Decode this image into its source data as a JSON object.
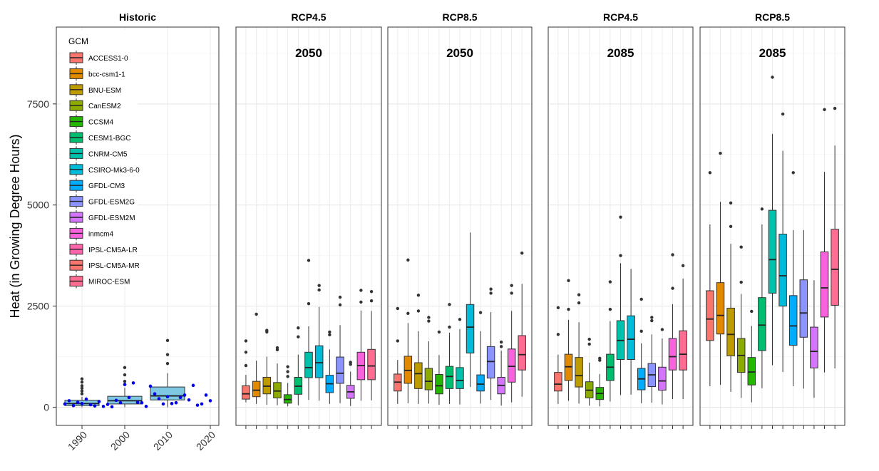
{
  "chart_data": {
    "type": "box",
    "ylabel": "Heat (in Growing Degree Hours)",
    "yticks": [
      0,
      2500,
      5000,
      7500
    ],
    "ylim": [
      -450,
      9400
    ],
    "legend": {
      "title": "GCM",
      "placement": "inside top-left of Historic panel",
      "entries": [
        {
          "name": "ACCESS1-0",
          "color": "#F8766D"
        },
        {
          "name": "bcc-csm1-1",
          "color": "#E18A00"
        },
        {
          "name": "BNU-ESM",
          "color": "#BE9C00"
        },
        {
          "name": "CanESM2",
          "color": "#8CAB00"
        },
        {
          "name": "CCSM4",
          "color": "#24B700"
        },
        {
          "name": "CESM1-BGC",
          "color": "#00BE70"
        },
        {
          "name": "CNRM-CM5",
          "color": "#00C1AB"
        },
        {
          "name": "CSIRO-Mk3-6-0",
          "color": "#00BBDA"
        },
        {
          "name": "GFDL-CM3",
          "color": "#00ACFC"
        },
        {
          "name": "GFDL-ESM2G",
          "color": "#8B93FF"
        },
        {
          "name": "GFDL-ESM2M",
          "color": "#D575FE"
        },
        {
          "name": "inmcm4",
          "color": "#F962DD"
        },
        {
          "name": "IPSL-CM5A-LR",
          "color": "#FF65AC"
        },
        {
          "name": "IPSL-CM5A-MR",
          "color": "#F8766D"
        },
        {
          "name": "MIROC-ESM",
          "color": "#FF6C91"
        }
      ]
    },
    "historic": {
      "title": "Historic",
      "x_ticks": [
        "1990",
        "2000",
        "2010",
        "2020"
      ],
      "x_tick_values": [
        1990,
        2000,
        2010,
        2020
      ],
      "xlim": [
        1984,
        2022
      ],
      "box_fill": "#7EC8E3",
      "boxes": [
        {
          "x": 1990,
          "q1": 40,
          "median": 90,
          "q3": 170,
          "lo": 0,
          "hi": 260,
          "outliers": [
            330,
            400,
            470,
            530,
            620,
            700
          ]
        },
        {
          "x": 2000,
          "q1": 80,
          "median": 160,
          "q3": 270,
          "lo": 0,
          "hi": 480,
          "outliers": [
            560,
            640,
            800,
            980
          ]
        },
        {
          "x": 2010,
          "q1": 180,
          "median": 280,
          "q3": 500,
          "lo": 0,
          "hi": 840,
          "outliers": [
            1080,
            1300,
            1650
          ]
        }
      ],
      "points_color": "#0000EE",
      "points": [
        {
          "x": 1986,
          "y": 80
        },
        {
          "x": 1987,
          "y": 160
        },
        {
          "x": 1988,
          "y": 40
        },
        {
          "x": 1989,
          "y": 120
        },
        {
          "x": 1990,
          "y": 90
        },
        {
          "x": 1991,
          "y": 200
        },
        {
          "x": 1992,
          "y": 60
        },
        {
          "x": 1993,
          "y": 30
        },
        {
          "x": 1994,
          "y": 140
        },
        {
          "x": 1995,
          "y": 20
        },
        {
          "x": 1996,
          "y": 70
        },
        {
          "x": 1997,
          "y": 10
        },
        {
          "x": 1998,
          "y": 170
        },
        {
          "x": 1999,
          "y": 110
        },
        {
          "x": 2000,
          "y": 560
        },
        {
          "x": 2001,
          "y": 240
        },
        {
          "x": 2002,
          "y": 600
        },
        {
          "x": 2003,
          "y": 120
        },
        {
          "x": 2004,
          "y": 110
        },
        {
          "x": 2005,
          "y": 20
        },
        {
          "x": 2006,
          "y": 520
        },
        {
          "x": 2007,
          "y": 330
        },
        {
          "x": 2008,
          "y": 210
        },
        {
          "x": 2009,
          "y": 80
        },
        {
          "x": 2010,
          "y": 260
        },
        {
          "x": 2011,
          "y": 90
        },
        {
          "x": 2012,
          "y": 110
        },
        {
          "x": 2013,
          "y": 240
        },
        {
          "x": 2014,
          "y": 300
        },
        {
          "x": 2015,
          "y": 180
        },
        {
          "x": 2016,
          "y": 540
        },
        {
          "x": 2017,
          "y": 50
        },
        {
          "x": 2018,
          "y": 80
        },
        {
          "x": 2019,
          "y": 300
        },
        {
          "x": 2020,
          "y": 160
        }
      ]
    },
    "panels": [
      {
        "title": "RCP4.5",
        "period": "2050",
        "boxes": [
          {
            "gcm": "ACCESS1-0",
            "q1": 200,
            "median": 330,
            "q3": 530,
            "lo": 120,
            "hi": 800,
            "outliers": [
              1030,
              1360,
              1640
            ]
          },
          {
            "gcm": "bcc-csm1-1",
            "q1": 260,
            "median": 420,
            "q3": 640,
            "lo": 80,
            "hi": 1150,
            "outliers": [
              2300
            ]
          },
          {
            "gcm": "BNU-ESM",
            "q1": 330,
            "median": 520,
            "q3": 740,
            "lo": 60,
            "hi": 1250,
            "outliers": [
              1860,
              1900
            ]
          },
          {
            "gcm": "CanESM2",
            "q1": 230,
            "median": 400,
            "q3": 610,
            "lo": 50,
            "hi": 1080,
            "outliers": [
              1420,
              1470
            ]
          },
          {
            "gcm": "CCSM4",
            "q1": 100,
            "median": 190,
            "q3": 310,
            "lo": 20,
            "hi": 600,
            "outliers": [
              760,
              880,
              1000
            ]
          },
          {
            "gcm": "CESM1-BGC",
            "q1": 320,
            "median": 520,
            "q3": 740,
            "lo": 50,
            "hi": 1300,
            "outliers": [
              1740,
              1960
            ]
          },
          {
            "gcm": "CNRM-CM5",
            "q1": 730,
            "median": 980,
            "q3": 1360,
            "lo": 180,
            "hi": 2000,
            "outliers": [
              2560,
              3630
            ]
          },
          {
            "gcm": "CSIRO-Mk3-6-0",
            "q1": 730,
            "median": 1100,
            "q3": 1520,
            "lo": 160,
            "hi": 2480,
            "outliers": [
              2900,
              3010
            ]
          },
          {
            "gcm": "GFDL-CM3",
            "q1": 360,
            "median": 580,
            "q3": 790,
            "lo": 80,
            "hi": 1430,
            "outliers": [
              1790,
              1860
            ]
          },
          {
            "gcm": "GFDL-ESM2G",
            "q1": 590,
            "median": 840,
            "q3": 1240,
            "lo": 100,
            "hi": 2030,
            "outliers": [
              2530,
              2720
            ]
          },
          {
            "gcm": "GFDL-ESM2M",
            "q1": 220,
            "median": 380,
            "q3": 540,
            "lo": 30,
            "hi": 880,
            "outliers": [
              1060,
              1110
            ]
          },
          {
            "gcm": "inmcm4",
            "q1": 680,
            "median": 1030,
            "q3": 1360,
            "lo": 160,
            "hi": 2390,
            "outliers": [
              2600,
              2890
            ]
          },
          {
            "gcm": "MIROC-ESM",
            "q1": 680,
            "median": 1020,
            "q3": 1430,
            "lo": 170,
            "hi": 2380,
            "outliers": [
              2630,
              2860
            ]
          }
        ]
      },
      {
        "title": "RCP8.5",
        "period": "2050",
        "boxes": [
          {
            "gcm": "ACCESS1-0",
            "q1": 400,
            "median": 620,
            "q3": 820,
            "lo": 80,
            "hi": 1170,
            "outliers": [
              1640,
              2440
            ]
          },
          {
            "gcm": "bcc-csm1-1",
            "q1": 590,
            "median": 910,
            "q3": 1260,
            "lo": 100,
            "hi": 2080,
            "outliers": [
              2320,
              3640
            ]
          },
          {
            "gcm": "BNU-ESM",
            "q1": 460,
            "median": 830,
            "q3": 1100,
            "lo": 80,
            "hi": 1880,
            "outliers": [
              2380,
              2770
            ]
          },
          {
            "gcm": "CanESM2",
            "q1": 430,
            "median": 640,
            "q3": 960,
            "lo": 90,
            "hi": 1630,
            "outliers": [
              2130,
              2220
            ]
          },
          {
            "gcm": "CCSM4",
            "q1": 330,
            "median": 530,
            "q3": 810,
            "lo": 60,
            "hi": 1290,
            "outliers": [
              1860
            ]
          },
          {
            "gcm": "CESM1-BGC",
            "q1": 460,
            "median": 760,
            "q3": 1010,
            "lo": 80,
            "hi": 1840,
            "outliers": [
              1980,
              2540
            ]
          },
          {
            "gcm": "CNRM-CM5",
            "q1": 460,
            "median": 660,
            "q3": 980,
            "lo": 70,
            "hi": 1930,
            "outliers": [
              2170
            ]
          },
          {
            "gcm": "CSIRO-Mk3-6-0",
            "q1": 1340,
            "median": 1980,
            "q3": 2540,
            "lo": 500,
            "hi": 4320,
            "outliers": []
          },
          {
            "gcm": "GFDL-CM3",
            "q1": 400,
            "median": 570,
            "q3": 800,
            "lo": 90,
            "hi": 1880,
            "outliers": [
              2340
            ]
          },
          {
            "gcm": "GFDL-ESM2G",
            "q1": 720,
            "median": 1130,
            "q3": 1500,
            "lo": 180,
            "hi": 2350,
            "outliers": [
              2820,
              2920
            ]
          },
          {
            "gcm": "GFDL-ESM2M",
            "q1": 330,
            "median": 540,
            "q3": 740,
            "lo": 40,
            "hi": 1400,
            "outliers": [
              1500,
              1610
            ]
          },
          {
            "gcm": "inmcm4",
            "q1": 620,
            "median": 1010,
            "q3": 1440,
            "lo": 120,
            "hi": 2380,
            "outliers": [
              2820,
              3010
            ]
          },
          {
            "gcm": "MIROC-ESM",
            "q1": 920,
            "median": 1300,
            "q3": 1770,
            "lo": 260,
            "hi": 3050,
            "outliers": [
              3810
            ]
          }
        ]
      },
      {
        "title": "RCP4.5",
        "period": "2085",
        "boxes": [
          {
            "gcm": "ACCESS1-0",
            "q1": 400,
            "median": 570,
            "q3": 860,
            "lo": 80,
            "hi": 1300,
            "outliers": [
              1800,
              2460
            ]
          },
          {
            "gcm": "bcc-csm1-1",
            "q1": 660,
            "median": 1000,
            "q3": 1310,
            "lo": 160,
            "hi": 2160,
            "outliers": [
              2420,
              3130
            ]
          },
          {
            "gcm": "BNU-ESM",
            "q1": 500,
            "median": 780,
            "q3": 1230,
            "lo": 90,
            "hi": 2100,
            "outliers": [
              2580,
              2780
            ]
          },
          {
            "gcm": "CanESM2",
            "q1": 230,
            "median": 420,
            "q3": 630,
            "lo": 40,
            "hi": 1100,
            "outliers": [
              1560,
              1680
            ]
          },
          {
            "gcm": "CCSM4",
            "q1": 190,
            "median": 340,
            "q3": 490,
            "lo": 20,
            "hi": 820,
            "outliers": [
              1160,
              1210
            ]
          },
          {
            "gcm": "CESM1-BGC",
            "q1": 660,
            "median": 990,
            "q3": 1310,
            "lo": 140,
            "hi": 2130,
            "outliers": [
              2420,
              3100
            ]
          },
          {
            "gcm": "CNRM-CM5",
            "q1": 1180,
            "median": 1650,
            "q3": 2140,
            "lo": 300,
            "hi": 3560,
            "outliers": [
              3750,
              4700
            ]
          },
          {
            "gcm": "CSIRO-Mk3-6-0",
            "q1": 1180,
            "median": 1680,
            "q3": 2260,
            "lo": 310,
            "hi": 3420,
            "outliers": []
          },
          {
            "gcm": "GFDL-CM3",
            "q1": 430,
            "median": 700,
            "q3": 960,
            "lo": 100,
            "hi": 1580,
            "outliers": [
              1880,
              2670
            ]
          },
          {
            "gcm": "GFDL-ESM2G",
            "q1": 510,
            "median": 800,
            "q3": 1080,
            "lo": 110,
            "hi": 1800,
            "outliers": [
              2140,
              2220
            ]
          },
          {
            "gcm": "GFDL-ESM2M",
            "q1": 420,
            "median": 650,
            "q3": 990,
            "lo": 70,
            "hi": 1700,
            "outliers": [
              1920
            ]
          },
          {
            "gcm": "inmcm4",
            "q1": 920,
            "median": 1250,
            "q3": 1700,
            "lo": 200,
            "hi": 2550,
            "outliers": [
              2940,
              3770
            ]
          },
          {
            "gcm": "MIROC-ESM",
            "q1": 920,
            "median": 1310,
            "q3": 1890,
            "lo": 200,
            "hi": 3180,
            "outliers": [
              3500
            ]
          }
        ]
      },
      {
        "title": "RCP8.5",
        "period": "2085",
        "boxes": [
          {
            "gcm": "ACCESS1-0",
            "q1": 1650,
            "median": 2180,
            "q3": 2880,
            "lo": 520,
            "hi": 4520,
            "outliers": [
              5800
            ]
          },
          {
            "gcm": "bcc-csm1-1",
            "q1": 1810,
            "median": 2270,
            "q3": 3080,
            "lo": 550,
            "hi": 5080,
            "outliers": [
              6280
            ]
          },
          {
            "gcm": "BNU-ESM",
            "q1": 1270,
            "median": 1800,
            "q3": 2450,
            "lo": 380,
            "hi": 4040,
            "outliers": [
              4470,
              5050
            ]
          },
          {
            "gcm": "CanESM2",
            "q1": 860,
            "median": 1280,
            "q3": 1700,
            "lo": 230,
            "hi": 2800,
            "outliers": [
              3090,
              3960
            ]
          },
          {
            "gcm": "CCSM4",
            "q1": 550,
            "median": 870,
            "q3": 1230,
            "lo": 120,
            "hi": 2010,
            "outliers": [
              2370
            ]
          },
          {
            "gcm": "CESM1-BGC",
            "q1": 1400,
            "median": 2030,
            "q3": 2710,
            "lo": 470,
            "hi": 4520,
            "outliers": [
              4900
            ]
          },
          {
            "gcm": "CNRM-CM5",
            "q1": 2820,
            "median": 3650,
            "q3": 4870,
            "lo": 1040,
            "hi": 6760,
            "outliers": [
              8160
            ]
          },
          {
            "gcm": "CSIRO-Mk3-6-0",
            "q1": 2500,
            "median": 3250,
            "q3": 4280,
            "lo": 870,
            "hi": 6340,
            "outliers": [
              7250
            ]
          },
          {
            "gcm": "GFDL-CM3",
            "q1": 1530,
            "median": 2010,
            "q3": 2760,
            "lo": 520,
            "hi": 4380,
            "outliers": [
              5800
            ]
          },
          {
            "gcm": "GFDL-ESM2G",
            "q1": 1730,
            "median": 2330,
            "q3": 3150,
            "lo": 460,
            "hi": 4380,
            "outliers": []
          },
          {
            "gcm": "GFDL-ESM2M",
            "q1": 970,
            "median": 1380,
            "q3": 1980,
            "lo": 230,
            "hi": 3140,
            "outliers": []
          },
          {
            "gcm": "inmcm4",
            "q1": 2230,
            "median": 2950,
            "q3": 3840,
            "lo": 860,
            "hi": 5820,
            "outliers": [
              7360
            ]
          },
          {
            "gcm": "MIROC-ESM",
            "q1": 2520,
            "median": 3410,
            "q3": 4400,
            "lo": 960,
            "hi": 6470,
            "outliers": [
              7390
            ]
          }
        ]
      }
    ]
  }
}
